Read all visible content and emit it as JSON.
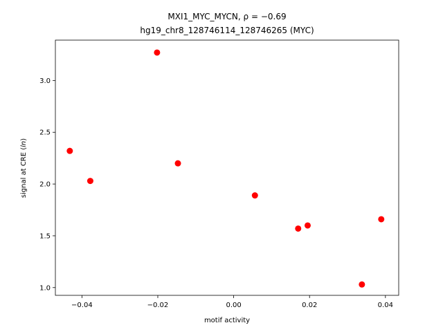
{
  "chart_data": {
    "type": "scatter",
    "title_line1": "MXI1_MYC_MYCN, ρ = −0.69",
    "title_line2": "hg19_chr8_128746114_128746265 (MYC)",
    "xlabel": "motif activity",
    "ylabel": "signal at CRE (ln)",
    "xlim": [
      -0.047,
      0.0435
    ],
    "ylim": [
      0.925,
      3.39
    ],
    "xticks": [
      -0.04,
      -0.02,
      0.0,
      0.02,
      0.04
    ],
    "xtick_labels": [
      "−0.04",
      "−0.02",
      "0.00",
      "0.02",
      "0.04"
    ],
    "yticks": [
      1.0,
      1.5,
      2.0,
      2.5,
      3.0
    ],
    "ytick_labels": [
      "1.0",
      "1.5",
      "2.0",
      "2.5",
      "3.0"
    ],
    "grid": false,
    "marker_color": "#ff0000",
    "points": [
      {
        "x": -0.0432,
        "y": 2.32
      },
      {
        "x": -0.0378,
        "y": 2.03
      },
      {
        "x": -0.0202,
        "y": 3.27
      },
      {
        "x": -0.0147,
        "y": 2.2
      },
      {
        "x": 0.0056,
        "y": 1.89
      },
      {
        "x": 0.017,
        "y": 1.57
      },
      {
        "x": 0.0195,
        "y": 1.6
      },
      {
        "x": 0.0338,
        "y": 1.03
      },
      {
        "x": 0.0389,
        "y": 1.66
      }
    ]
  }
}
